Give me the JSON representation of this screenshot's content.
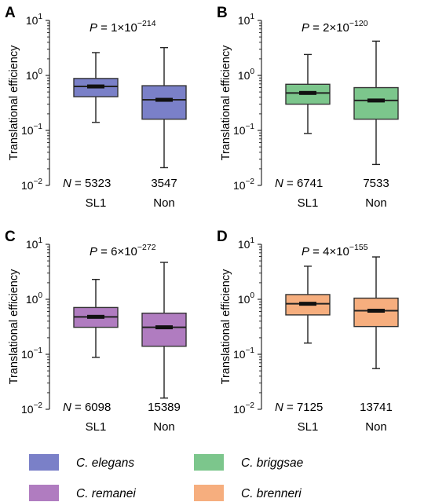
{
  "ylabel": "Translational efficiency",
  "categories": [
    "SL1",
    "Non"
  ],
  "y_ticks": [
    {
      "base": "10",
      "exp": "1"
    },
    {
      "base": "10",
      "exp": "0"
    },
    {
      "base": "10",
      "exp": "−1"
    },
    {
      "base": "10",
      "exp": "−2"
    }
  ],
  "chart_data": [
    {
      "type": "box",
      "panel": "A",
      "yscale": "log",
      "ylim": [
        0.01,
        10
      ],
      "ylabel": "Translational efficiency",
      "categories": [
        "SL1",
        "Non"
      ],
      "p_label": "P",
      "p_value": "= 1×10",
      "p_exp": "−214",
      "n_label": "N",
      "n_values": [
        "= 5323",
        "3547"
      ],
      "color": "#7a80c8",
      "boxes": [
        {
          "category": "SL1",
          "whisker_low": 0.14,
          "q1": 0.41,
          "median": 0.63,
          "q3": 0.88,
          "whisker_high": 2.6
        },
        {
          "category": "Non",
          "whisker_low": 0.021,
          "q1": 0.16,
          "median": 0.36,
          "q3": 0.65,
          "whisker_high": 3.2
        }
      ]
    },
    {
      "type": "box",
      "panel": "B",
      "yscale": "log",
      "ylim": [
        0.01,
        10
      ],
      "ylabel": "Translational efficiency",
      "categories": [
        "SL1",
        "Non"
      ],
      "p_label": "P",
      "p_value": "= 2×10",
      "p_exp": "−120",
      "n_label": "N",
      "n_values": [
        "= 6741",
        "7533"
      ],
      "color": "#7cc68c",
      "boxes": [
        {
          "category": "SL1",
          "whisker_low": 0.088,
          "q1": 0.3,
          "median": 0.48,
          "q3": 0.69,
          "whisker_high": 2.4
        },
        {
          "category": "Non",
          "whisker_low": 0.024,
          "q1": 0.16,
          "median": 0.35,
          "q3": 0.6,
          "whisker_high": 4.2
        }
      ]
    },
    {
      "type": "box",
      "panel": "C",
      "yscale": "log",
      "ylim": [
        0.01,
        10
      ],
      "ylabel": "Translational efficiency",
      "categories": [
        "SL1",
        "Non"
      ],
      "p_label": "P",
      "p_value": "= 6×10",
      "p_exp": "−272",
      "n_label": "N",
      "n_values": [
        "= 6098",
        "15389"
      ],
      "color": "#b07cc0",
      "boxes": [
        {
          "category": "SL1",
          "whisker_low": 0.088,
          "q1": 0.31,
          "median": 0.48,
          "q3": 0.71,
          "whisker_high": 2.3
        },
        {
          "category": "Non",
          "whisker_low": 0.016,
          "q1": 0.14,
          "median": 0.31,
          "q3": 0.56,
          "whisker_high": 4.7
        }
      ]
    },
    {
      "type": "box",
      "panel": "D",
      "yscale": "log",
      "ylim": [
        0.01,
        10
      ],
      "ylabel": "Translational efficiency",
      "categories": [
        "SL1",
        "Non"
      ],
      "p_label": "P",
      "p_value": "= 4×10",
      "p_exp": "−155",
      "n_label": "N",
      "n_values": [
        "= 7125",
        "13741"
      ],
      "color": "#f6ae7e",
      "boxes": [
        {
          "category": "SL1",
          "whisker_low": 0.16,
          "q1": 0.52,
          "median": 0.83,
          "q3": 1.22,
          "whisker_high": 4.0
        },
        {
          "category": "Non",
          "whisker_low": 0.055,
          "q1": 0.32,
          "median": 0.62,
          "q3": 1.05,
          "whisker_high": 5.9
        }
      ]
    }
  ],
  "legend": [
    {
      "name": "C. elegans",
      "color": "#7a80c8"
    },
    {
      "name": "C. briggsae",
      "color": "#7cc68c"
    },
    {
      "name": "C. remanei",
      "color": "#b07cc0"
    },
    {
      "name": "C. brenneri",
      "color": "#f6ae7e"
    }
  ]
}
